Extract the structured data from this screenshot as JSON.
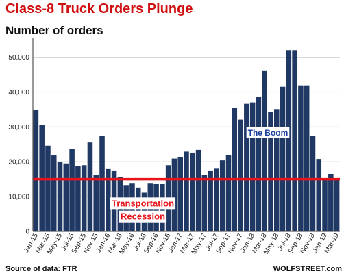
{
  "header": {
    "title": "Class-8 Truck Orders Plunge",
    "subtitle": "Number of orders"
  },
  "footer": {
    "source": "Source of data: FTR",
    "brand": "WOLFSTREET.com"
  },
  "colors": {
    "bar": "#1f3864",
    "reference_line": "#e8141c",
    "title": "#d01010",
    "boom_label": "#1a3c9c",
    "recession_label": "#e8141c",
    "grid": "#d8d8d8"
  },
  "chart_data": {
    "type": "bar",
    "categories": [
      "Jan-15",
      "Feb-15",
      "Mar-15",
      "Apr-15",
      "May-15",
      "Jun-15",
      "Jul-15",
      "Aug-15",
      "Sep-15",
      "Oct-15",
      "Nov-15",
      "Dec-15",
      "Jan-16",
      "Feb-16",
      "Mar-16",
      "Apr-16",
      "May-16",
      "Jun-16",
      "Jul-16",
      "Aug-16",
      "Sep-16",
      "Oct-16",
      "Nov-16",
      "Dec-16",
      "Jan-17",
      "Feb-17",
      "Mar-17",
      "Apr-17",
      "May-17",
      "Jun-17",
      "Jul-17",
      "Aug-17",
      "Sep-17",
      "Oct-17",
      "Nov-17",
      "Dec-17",
      "Jan-18",
      "Feb-18",
      "Mar-18",
      "Apr-18",
      "May-18",
      "Jun-18",
      "Jul-18",
      "Aug-18",
      "Sep-18",
      "Oct-18",
      "Nov-18",
      "Dec-18",
      "Jan-19",
      "Feb-19",
      "Mar-19"
    ],
    "tick_labels": [
      "Jan-15",
      "Mar-15",
      "May-15",
      "Jul-15",
      "Sep-15",
      "Nov-15",
      "Jan-16",
      "Mar-16",
      "May-16",
      "Jul-16",
      "Sep-16",
      "Nov-16",
      "Jan-17",
      "Mar-17",
      "May-17",
      "Jul-17",
      "Sep-17",
      "Nov-17",
      "Jan-18",
      "Mar-18",
      "May-18",
      "Jul-18",
      "Sep-18",
      "Nov-18",
      "Jan-19",
      "Mar-19"
    ],
    "values": [
      34800,
      30600,
      24600,
      21800,
      20000,
      19500,
      23600,
      18700,
      19000,
      25500,
      16200,
      27500,
      17900,
      17300,
      15600,
      13300,
      13900,
      12600,
      11100,
      13900,
      13600,
      13600,
      19000,
      20900,
      21300,
      22900,
      22600,
      23400,
      16200,
      17300,
      18000,
      20400,
      22000,
      35400,
      32100,
      36600,
      37000,
      38600,
      46200,
      34200,
      35100,
      41500,
      52000,
      52000,
      41900,
      41900,
      27400,
      20800,
      15000,
      16500,
      15000
    ],
    "ylim": [
      0,
      55000
    ],
    "y_ticks": [
      0,
      10000,
      20000,
      30000,
      40000,
      50000
    ],
    "y_tick_labels": [
      "0",
      "10,000",
      "20,000",
      "30,000",
      "40,000",
      "50,000"
    ],
    "reference_line": 15000,
    "grid": true,
    "annotations": [
      {
        "text": "The Boom",
        "x": "Apr-18",
        "y": 27500
      },
      {
        "text": "Transportation",
        "x": "Jul-16",
        "y": 7200
      },
      {
        "text": "Recession",
        "x": "Jul-16",
        "y": 3400
      }
    ],
    "xlabel": "",
    "ylabel": ""
  }
}
